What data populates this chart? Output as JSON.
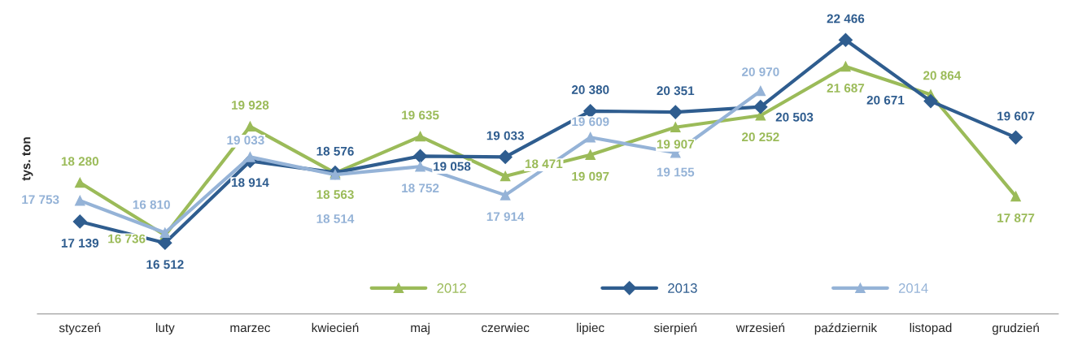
{
  "chart_data": {
    "type": "line",
    "ylabel": "tys. ton",
    "legend": "bottom",
    "categories": [
      "styczeń",
      "luty",
      "marzec",
      "kwiecień",
      "maj",
      "czerwiec",
      "lipiec",
      "sierpień",
      "wrzesień",
      "październik",
      "listopad",
      "grudzień"
    ],
    "series": [
      {
        "name": "2012",
        "color": "#9bbb59",
        "marker": "triangle",
        "values": [
          18280,
          16736,
          19928,
          18563,
          19635,
          18471,
          19097,
          19907,
          20252,
          21687,
          20864,
          17877
        ],
        "value_labels": [
          "18 280",
          "16 736",
          "19 928",
          "18 563",
          "19 635",
          "18 471",
          "19 097",
          "19 907",
          "20 252",
          "21 687",
          "20 864",
          "17 877"
        ]
      },
      {
        "name": "2013",
        "color": "#2f5d8f",
        "marker": "diamond",
        "values": [
          17139,
          16512,
          18914,
          18576,
          19058,
          19033,
          20380,
          20351,
          20503,
          22466,
          20671,
          19607
        ],
        "value_labels": [
          "17 139",
          "16 512",
          "18 914",
          "18 576",
          "19 058",
          "19 033",
          "20 380",
          "20 351",
          "20 503",
          "22 466",
          "20 671",
          "19 607"
        ]
      },
      {
        "name": "2014",
        "color": "#95b3d7",
        "marker": "triangle",
        "values": [
          17753,
          16810,
          19033,
          18514,
          18752,
          17914,
          19609,
          19155,
          20970,
          null,
          null,
          null
        ],
        "value_labels": [
          "17 753",
          "16 810",
          "19 033",
          "18 514",
          "18 752",
          "17 914",
          "19 609",
          "19 155",
          "20 970",
          null,
          null,
          null
        ]
      }
    ]
  }
}
